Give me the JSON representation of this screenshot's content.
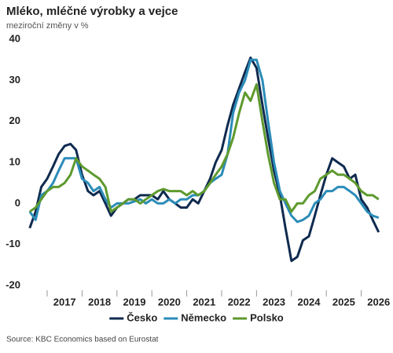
{
  "chart_data": {
    "type": "line",
    "title": "Mléko, mléčné výrobky a vejce",
    "subtitle": "meziroční změny v %",
    "source": "Source: KBC Economics based on Eurostat",
    "x": [
      2016.5,
      2016.67,
      2016.83,
      2017,
      2017.17,
      2017.33,
      2017.5,
      2017.67,
      2017.83,
      2018,
      2018.17,
      2018.33,
      2018.5,
      2018.67,
      2018.83,
      2019,
      2019.17,
      2019.33,
      2019.5,
      2019.67,
      2019.83,
      2020,
      2020.17,
      2020.33,
      2020.5,
      2020.67,
      2020.83,
      2021,
      2021.17,
      2021.33,
      2021.5,
      2021.67,
      2021.83,
      2022,
      2022.17,
      2022.33,
      2022.5,
      2022.67,
      2022.83,
      2023,
      2023.17,
      2023.33,
      2023.5,
      2023.67,
      2023.83,
      2024,
      2024.17,
      2024.33,
      2024.5,
      2024.67,
      2024.83,
      2025,
      2025.17,
      2025.33,
      2025.5,
      2025.67,
      2025.83,
      2026,
      2026.17,
      2026.33,
      2026.5
    ],
    "xlim": [
      2016.5,
      2026.6
    ],
    "xticks": [
      {
        "value": 2017,
        "label": "2017"
      },
      {
        "value": 2018,
        "label": "2018"
      },
      {
        "value": 2019,
        "label": "2019"
      },
      {
        "value": 2020,
        "label": "2020"
      },
      {
        "value": 2021,
        "label": "2021"
      },
      {
        "value": 2022,
        "label": "2022"
      },
      {
        "value": 2023,
        "label": "2023"
      },
      {
        "value": 2024,
        "label": "2024"
      },
      {
        "value": 2025,
        "label": "2025"
      },
      {
        "value": 2026,
        "label": "2026"
      }
    ],
    "ylim": [
      -20,
      40
    ],
    "yticks": [
      -20,
      -10,
      0,
      10,
      20,
      30,
      40
    ],
    "grid": false,
    "legend": "bottom",
    "series": [
      {
        "name": "Česko",
        "color": "#0f2a4f",
        "values": [
          -6,
          -2,
          4,
          6,
          9,
          12,
          14,
          14.5,
          13,
          7,
          3,
          2,
          3,
          0,
          -3,
          -1,
          0,
          1,
          1,
          2,
          2,
          2,
          1,
          3,
          1,
          0,
          -1,
          -1,
          1,
          0,
          3,
          6,
          10,
          13,
          19,
          24,
          28,
          32,
          35.5,
          33,
          24,
          16,
          8,
          2,
          -6,
          -14,
          -13,
          -9,
          -8,
          -3,
          2,
          7,
          11,
          10,
          9,
          6,
          7,
          1,
          -1,
          -4,
          -7
        ]
      },
      {
        "name": "Německo",
        "color": "#2b8cb8",
        "values": [
          -2,
          -4,
          2,
          3,
          5,
          8,
          11,
          11,
          11,
          6,
          5,
          3,
          4,
          1,
          -1,
          0,
          0,
          0,
          0.5,
          1,
          0,
          1,
          0,
          0,
          1,
          0,
          1,
          1,
          2,
          2,
          3,
          5,
          6,
          7,
          12,
          22,
          27,
          30,
          35,
          35,
          30,
          20,
          10,
          3,
          0,
          -3,
          -4.5,
          -4,
          -3,
          0,
          1,
          3,
          3,
          4,
          4,
          3,
          2,
          0,
          -2,
          -3,
          -3.5
        ]
      },
      {
        "name": "Polsko",
        "color": "#5e9a2e",
        "values": [
          -2,
          -1,
          1,
          3,
          4,
          4,
          5,
          7,
          11,
          9,
          8,
          7,
          6,
          4,
          -2,
          -1,
          0,
          1,
          1,
          0,
          1,
          2,
          3,
          3.5,
          3,
          3,
          3,
          2,
          3,
          2,
          3,
          5,
          7,
          9,
          12,
          16,
          22,
          27,
          25,
          29,
          20,
          12,
          5,
          1,
          1,
          -2,
          0,
          0,
          2,
          3,
          6,
          7,
          8,
          7,
          7,
          6,
          5,
          3,
          2,
          2,
          1
        ]
      }
    ]
  }
}
